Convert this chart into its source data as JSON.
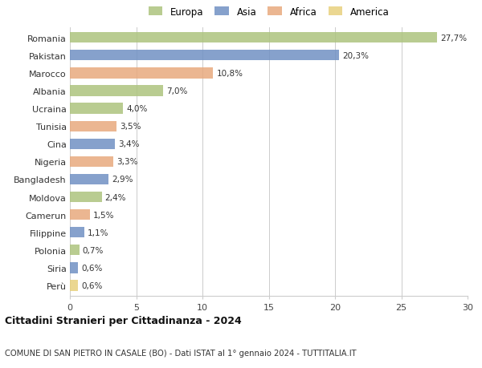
{
  "categories": [
    "Romania",
    "Pakistan",
    "Marocco",
    "Albania",
    "Ucraina",
    "Tunisia",
    "Cina",
    "Nigeria",
    "Bangladesh",
    "Moldova",
    "Camerun",
    "Filippine",
    "Polonia",
    "Siria",
    "Perù"
  ],
  "values": [
    27.7,
    20.3,
    10.8,
    7.0,
    4.0,
    3.5,
    3.4,
    3.3,
    2.9,
    2.4,
    1.5,
    1.1,
    0.7,
    0.6,
    0.6
  ],
  "labels": [
    "27,7%",
    "20,3%",
    "10,8%",
    "7,0%",
    "4,0%",
    "3,5%",
    "3,4%",
    "3,3%",
    "2,9%",
    "2,4%",
    "1,5%",
    "1,1%",
    "0,7%",
    "0,6%",
    "0,6%"
  ],
  "continents": [
    "Europa",
    "Asia",
    "Africa",
    "Europa",
    "Europa",
    "Africa",
    "Asia",
    "Africa",
    "Asia",
    "Europa",
    "Africa",
    "Asia",
    "Europa",
    "Asia",
    "America"
  ],
  "colors": {
    "Europa": "#adc47e",
    "Asia": "#7191c4",
    "Africa": "#e8a97e",
    "America": "#e8d07e"
  },
  "legend_order": [
    "Europa",
    "Asia",
    "Africa",
    "America"
  ],
  "xlim": [
    0,
    30
  ],
  "xticks": [
    0,
    5,
    10,
    15,
    20,
    25,
    30
  ],
  "title": "Cittadini Stranieri per Cittadinanza - 2024",
  "subtitle": "COMUNE DI SAN PIETRO IN CASALE (BO) - Dati ISTAT al 1° gennaio 2024 - TUTTITALIA.IT",
  "bg_color": "#ffffff",
  "grid_color": "#cccccc"
}
